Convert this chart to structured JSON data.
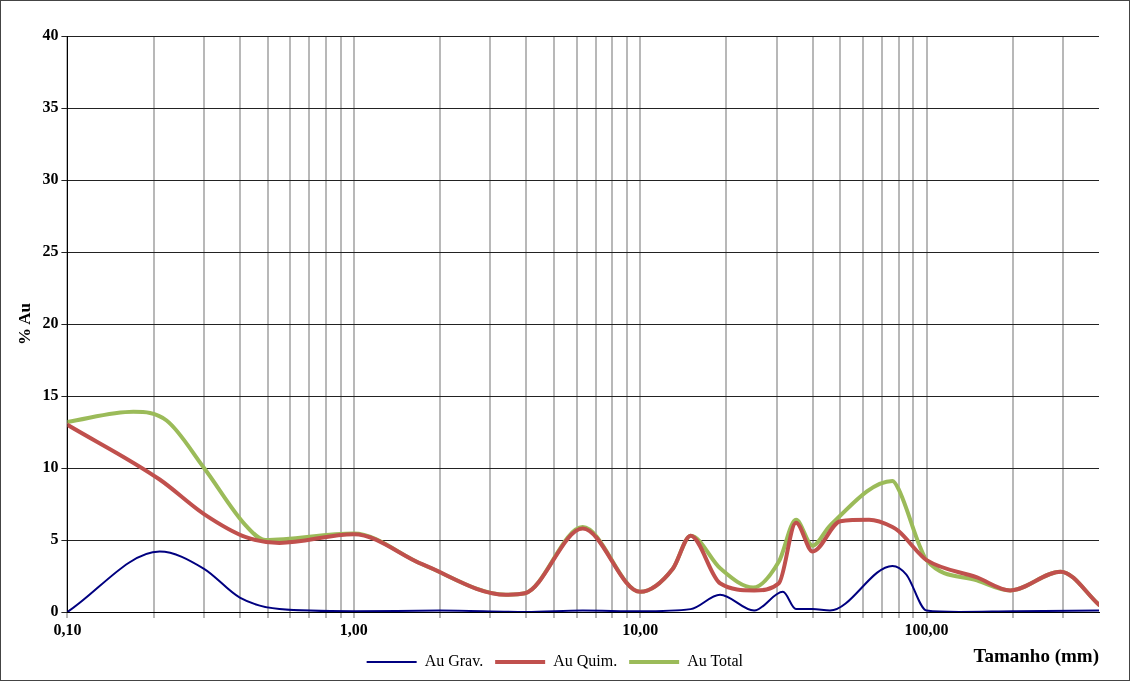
{
  "chart_data": {
    "type": "line",
    "xlabel": "Tamanho (mm)",
    "ylabel": "% Au",
    "log": "x",
    "grid": true,
    "legend": "bottom",
    "marker": "none",
    "line_style": "solid",
    "xlim": [
      0.1,
      400
    ],
    "ylim": [
      0,
      40
    ],
    "xticks": [
      {
        "value": 0.1,
        "label": "0,10"
      },
      {
        "value": 0.2,
        "label": null
      },
      {
        "value": 0.3,
        "label": null
      },
      {
        "value": 0.4,
        "label": null
      },
      {
        "value": 0.5,
        "label": null
      },
      {
        "value": 0.6,
        "label": null
      },
      {
        "value": 0.7,
        "label": null
      },
      {
        "value": 0.8,
        "label": null
      },
      {
        "value": 0.9,
        "label": null
      },
      {
        "value": 1,
        "label": "1,00"
      },
      {
        "value": 2,
        "label": null
      },
      {
        "value": 3,
        "label": null
      },
      {
        "value": 4,
        "label": null
      },
      {
        "value": 5,
        "label": null
      },
      {
        "value": 6,
        "label": null
      },
      {
        "value": 7,
        "label": null
      },
      {
        "value": 8,
        "label": null
      },
      {
        "value": 9,
        "label": null
      },
      {
        "value": 10,
        "label": "10,00"
      },
      {
        "value": 20,
        "label": null
      },
      {
        "value": 30,
        "label": null
      },
      {
        "value": 40,
        "label": null
      },
      {
        "value": 50,
        "label": null
      },
      {
        "value": 60,
        "label": null
      },
      {
        "value": 70,
        "label": null
      },
      {
        "value": 80,
        "label": null
      },
      {
        "value": 90,
        "label": null
      },
      {
        "value": 100,
        "label": "100,00"
      },
      {
        "value": 200,
        "label": null
      },
      {
        "value": 300,
        "label": null
      }
    ],
    "yticks": [
      0,
      5,
      10,
      15,
      20,
      25,
      30,
      35,
      40
    ],
    "series": [
      {
        "name": "Au Grav.",
        "color": "#000080",
        "x": [
          0.1,
          0.21,
          0.3,
          0.4,
          0.55,
          1,
          2,
          4,
          6.3,
          10,
          15,
          19,
          25,
          31.5,
          35,
          40,
          46,
          76,
          85,
          100,
          130,
          200,
          400
        ],
        "values": [
          0,
          4.2,
          3.0,
          1.0,
          0.2,
          0.05,
          0.1,
          0,
          0.1,
          0.05,
          0.2,
          1.2,
          0.1,
          1.4,
          0.2,
          0.2,
          0.1,
          3.2,
          2.6,
          0.1,
          0,
          0.05,
          0.1
        ]
      },
      {
        "name": "Au Quim.",
        "color": "#c0504d",
        "x": [
          0.1,
          0.21,
          0.3,
          0.42,
          0.55,
          1,
          1.74,
          3.4,
          3.96,
          6.3,
          10,
          13,
          15,
          19,
          25,
          30.5,
          35,
          40,
          50,
          63,
          76,
          80,
          95,
          100,
          150,
          196,
          294,
          400
        ],
        "values": [
          13.0,
          9.2,
          6.8,
          5.2,
          4.8,
          5.4,
          3.3,
          1.2,
          1.3,
          5.8,
          1.4,
          3.0,
          5.3,
          2.0,
          1.5,
          2.0,
          6.2,
          4.2,
          6.3,
          6.4,
          5.9,
          5.6,
          4.0,
          3.6,
          2.4,
          1.5,
          2.8,
          0.5
        ]
      },
      {
        "name": "Au Total",
        "color": "#9bbb59",
        "x": [
          0.1,
          0.17,
          0.222,
          0.3,
          0.42,
          0.49,
          1,
          1.74,
          3.4,
          3.96,
          6.3,
          10,
          13,
          15,
          19.1,
          24.8,
          30.5,
          35,
          40,
          46,
          76,
          80,
          95,
          100,
          150,
          196,
          294,
          400
        ],
        "values": [
          13.2,
          13.9,
          13.3,
          10.0,
          6.0,
          5.0,
          5.45,
          3.3,
          1.2,
          1.3,
          5.9,
          1.4,
          3.0,
          5.3,
          3.0,
          1.7,
          3.5,
          6.4,
          4.6,
          6.0,
          9.1,
          8.5,
          4.5,
          3.6,
          2.2,
          1.5,
          2.8,
          0.5
        ]
      }
    ]
  }
}
